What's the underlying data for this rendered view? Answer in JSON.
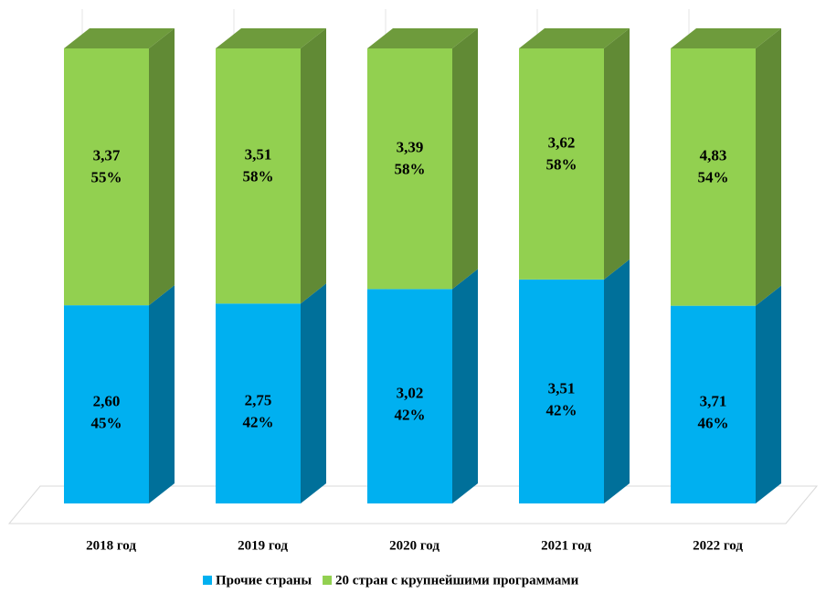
{
  "chart_data": {
    "type": "stacked_bar_3d",
    "categories": [
      "2018 год",
      "2019 год",
      "2020 год",
      "2021 год",
      "2022 год"
    ],
    "series": [
      {
        "name": "Прочие страны",
        "color": "#00b0f0",
        "side_color": "#00709a",
        "values": [
          2.6,
          2.75,
          3.02,
          3.51,
          3.71
        ],
        "value_labels": [
          "2,60",
          "2,75",
          "3,02",
          "3,51",
          "3,71"
        ],
        "shares": [
          45,
          42,
          42,
          42,
          46
        ],
        "share_labels": [
          "45%",
          "42%",
          "42%",
          "42%",
          "46%"
        ]
      },
      {
        "name": "20 стран с крупнейшими программами",
        "color": "#92d050",
        "side_color": "#618a35",
        "values": [
          3.37,
          3.51,
          3.39,
          3.62,
          4.83
        ],
        "value_labels": [
          "3,37",
          "3,51",
          "3,39",
          "3,62",
          "4,83"
        ],
        "shares": [
          55,
          58,
          58,
          58,
          54
        ],
        "share_labels": [
          "55%",
          "58%",
          "58%",
          "58%",
          "54%"
        ]
      }
    ],
    "legend": "bottom"
  }
}
